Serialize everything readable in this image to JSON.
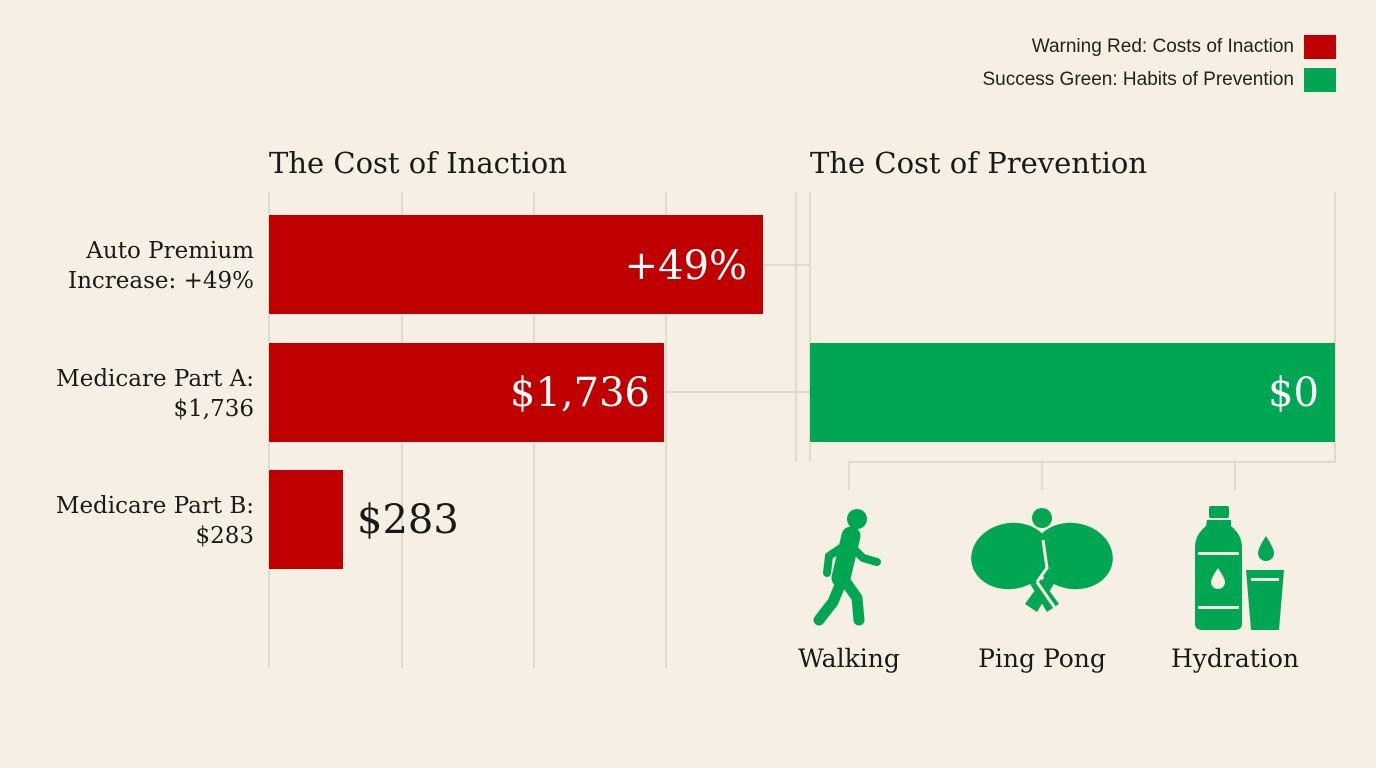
{
  "legend": [
    {
      "label": "Warning Red: Costs of Inaction",
      "color": "#c00000"
    },
    {
      "label": "Success Green: Habits of Prevention",
      "color": "#00a651"
    }
  ],
  "colors": {
    "inaction": "#c00000",
    "prevention": "#00a651",
    "background": "#f6efe3",
    "grid": "#d9d3c8"
  },
  "chart_data": [
    {
      "type": "bar",
      "orientation": "horizontal",
      "title": "The Cost of Inaction",
      "categories": [
        {
          "line1": "Auto Premium",
          "line2": "Increase: +49%"
        },
        {
          "line1": "Medicare Part A:",
          "line2": "$1,736"
        },
        {
          "line1": "Medicare Part B:",
          "line2": "$283"
        }
      ],
      "value_labels": [
        "+49%",
        "$1,736",
        "$283"
      ],
      "relative_lengths": [
        1.0,
        0.8,
        0.15
      ],
      "grid": true
    },
    {
      "type": "bar",
      "orientation": "horizontal",
      "title": "The Cost of Prevention",
      "values": [
        0
      ],
      "value_labels": [
        "$0"
      ],
      "grid": true
    }
  ],
  "habits": [
    {
      "label": "Walking",
      "icon": "walking-person-icon"
    },
    {
      "label": "Ping Pong",
      "icon": "ping-pong-paddles-icon"
    },
    {
      "label": "Hydration",
      "icon": "water-bottle-glass-icon"
    }
  ]
}
